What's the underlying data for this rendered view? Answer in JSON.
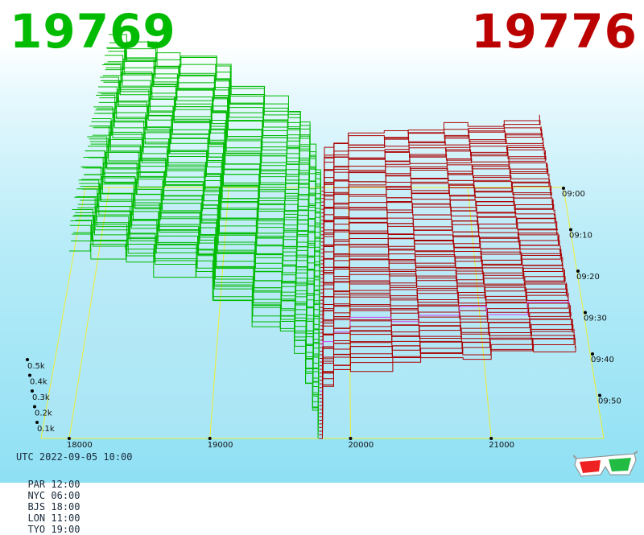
{
  "header": {
    "bid_price": "19769",
    "ask_price": "19776",
    "bid_color": "#00bb00",
    "ask_color": "#bb0000"
  },
  "footer": {
    "utc_label": "UTC 2022-09-05 10:00",
    "timezones": [
      {
        "code": "PAR",
        "time": "12:00"
      },
      {
        "code": "NYC",
        "time": "06:00"
      },
      {
        "code": "BJS",
        "time": "18:00"
      },
      {
        "code": "LON",
        "time": "11:00"
      },
      {
        "code": "TYO",
        "time": "19:00"
      }
    ]
  },
  "icons": {
    "glasses": "3d-glasses-icon"
  },
  "chart_data": {
    "type": "area",
    "kind": "3d-order-book-depth",
    "price_ticks": [
      18000,
      19000,
      20000,
      21000
    ],
    "depth_ticks": [
      "0.1k",
      "0.2k",
      "0.3k",
      "0.4k",
      "0.5k"
    ],
    "time_ticks": [
      "09:00",
      "09:10",
      "09:20",
      "09:30",
      "09:40",
      "09:50"
    ],
    "xlim": [
      17800,
      21800
    ],
    "ylim": [
      0,
      0.5
    ],
    "bid_price": 19769,
    "ask_price": 19776,
    "colors": {
      "bids": "#00bb00",
      "asks": "#aa0000",
      "latest_ask": "#cc44ee",
      "frame": "#eeee33"
    },
    "series": [
      {
        "side": "bids",
        "values": [
          {
            "price": 18000,
            "depth": 0.61
          },
          {
            "price": 18150,
            "depth": 0.58
          },
          {
            "price": 18400,
            "depth": 0.55
          },
          {
            "price": 18600,
            "depth": 0.53
          },
          {
            "price": 18900,
            "depth": 0.51
          },
          {
            "price": 19020,
            "depth": 0.42
          },
          {
            "price": 19300,
            "depth": 0.36
          },
          {
            "price": 19500,
            "depth": 0.33
          },
          {
            "price": 19600,
            "depth": 0.27
          },
          {
            "price": 19680,
            "depth": 0.17
          },
          {
            "price": 19730,
            "depth": 0.08
          },
          {
            "price": 19769,
            "depth": 0.0
          }
        ]
      },
      {
        "side": "asks",
        "values": [
          {
            "price": 19776,
            "depth": 0.0
          },
          {
            "price": 19800,
            "depth": 0.16
          },
          {
            "price": 19880,
            "depth": 0.2
          },
          {
            "price": 20000,
            "depth": 0.22
          },
          {
            "price": 20300,
            "depth": 0.235
          },
          {
            "price": 20500,
            "depth": 0.245
          },
          {
            "price": 20800,
            "depth": 0.255
          },
          {
            "price": 21000,
            "depth": 0.265
          },
          {
            "price": 21300,
            "depth": 0.275
          },
          {
            "price": 21600,
            "depth": 0.285
          }
        ]
      }
    ]
  }
}
